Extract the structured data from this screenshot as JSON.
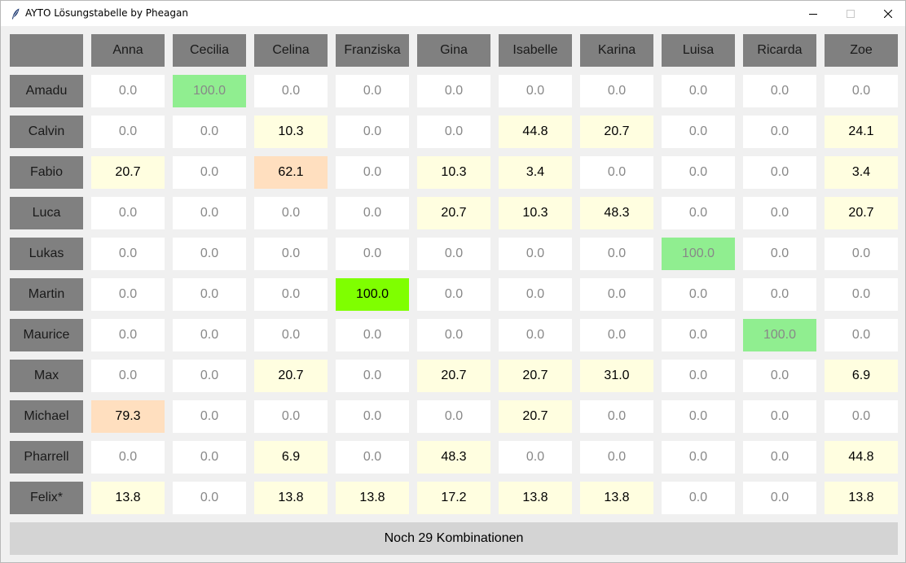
{
  "window": {
    "title": "AYTO Lösungstabelle by Pheagan",
    "icon": "feather-icon"
  },
  "columns": [
    "Anna",
    "Cecilia",
    "Celina",
    "Franziska",
    "Gina",
    "Isabelle",
    "Karina",
    "Luisa",
    "Ricarda",
    "Zoe"
  ],
  "rows": [
    {
      "name": "Amadu",
      "values": [
        "0.0",
        "100.0",
        "0.0",
        "0.0",
        "0.0",
        "0.0",
        "0.0",
        "0.0",
        "0.0",
        "0.0"
      ]
    },
    {
      "name": "Calvin",
      "values": [
        "0.0",
        "0.0",
        "10.3",
        "0.0",
        "0.0",
        "44.8",
        "20.7",
        "0.0",
        "0.0",
        "24.1"
      ]
    },
    {
      "name": "Fabio",
      "values": [
        "20.7",
        "0.0",
        "62.1",
        "0.0",
        "10.3",
        "3.4",
        "0.0",
        "0.0",
        "0.0",
        "3.4"
      ]
    },
    {
      "name": "Luca",
      "values": [
        "0.0",
        "0.0",
        "0.0",
        "0.0",
        "20.7",
        "10.3",
        "48.3",
        "0.0",
        "0.0",
        "20.7"
      ]
    },
    {
      "name": "Lukas",
      "values": [
        "0.0",
        "0.0",
        "0.0",
        "0.0",
        "0.0",
        "0.0",
        "0.0",
        "100.0",
        "0.0",
        "0.0"
      ]
    },
    {
      "name": "Martin",
      "values": [
        "0.0",
        "0.0",
        "0.0",
        "100.0",
        "0.0",
        "0.0",
        "0.0",
        "0.0",
        "0.0",
        "0.0"
      ]
    },
    {
      "name": "Maurice",
      "values": [
        "0.0",
        "0.0",
        "0.0",
        "0.0",
        "0.0",
        "0.0",
        "0.0",
        "0.0",
        "100.0",
        "0.0"
      ]
    },
    {
      "name": "Max",
      "values": [
        "0.0",
        "0.0",
        "20.7",
        "0.0",
        "20.7",
        "20.7",
        "31.0",
        "0.0",
        "0.0",
        "6.9"
      ]
    },
    {
      "name": "Michael",
      "values": [
        "79.3",
        "0.0",
        "0.0",
        "0.0",
        "0.0",
        "20.7",
        "0.0",
        "0.0",
        "0.0",
        "0.0"
      ]
    },
    {
      "name": "Pharrell",
      "values": [
        "0.0",
        "0.0",
        "6.9",
        "0.0",
        "48.3",
        "0.0",
        "0.0",
        "0.0",
        "0.0",
        "44.8"
      ]
    },
    {
      "name": "Felix*",
      "values": [
        "13.8",
        "0.0",
        "13.8",
        "13.8",
        "17.2",
        "13.8",
        "13.8",
        "0.0",
        "0.0",
        "13.8"
      ]
    }
  ],
  "highlights": {
    "confirmed_match": {
      "color": "#90ee90",
      "text": "#888888",
      "cells": [
        [
          0,
          1
        ],
        [
          4,
          7
        ],
        [
          6,
          8
        ]
      ]
    },
    "perfect_match": {
      "color": "#7fff00",
      "text": "#000000",
      "cells": [
        [
          5,
          3
        ]
      ]
    },
    "high": {
      "color": "#ffdfbf",
      "cells": [
        [
          2,
          2
        ],
        [
          8,
          0
        ]
      ]
    },
    "nonzero": {
      "color": "#fffee0"
    }
  },
  "colors": {
    "header_bg": "#808080",
    "cell_bg": "#ffffff",
    "zero_text": "#888888",
    "footer_bg": "#d4d4d4"
  },
  "footer": {
    "status": "Noch 29 Kombinationen"
  }
}
